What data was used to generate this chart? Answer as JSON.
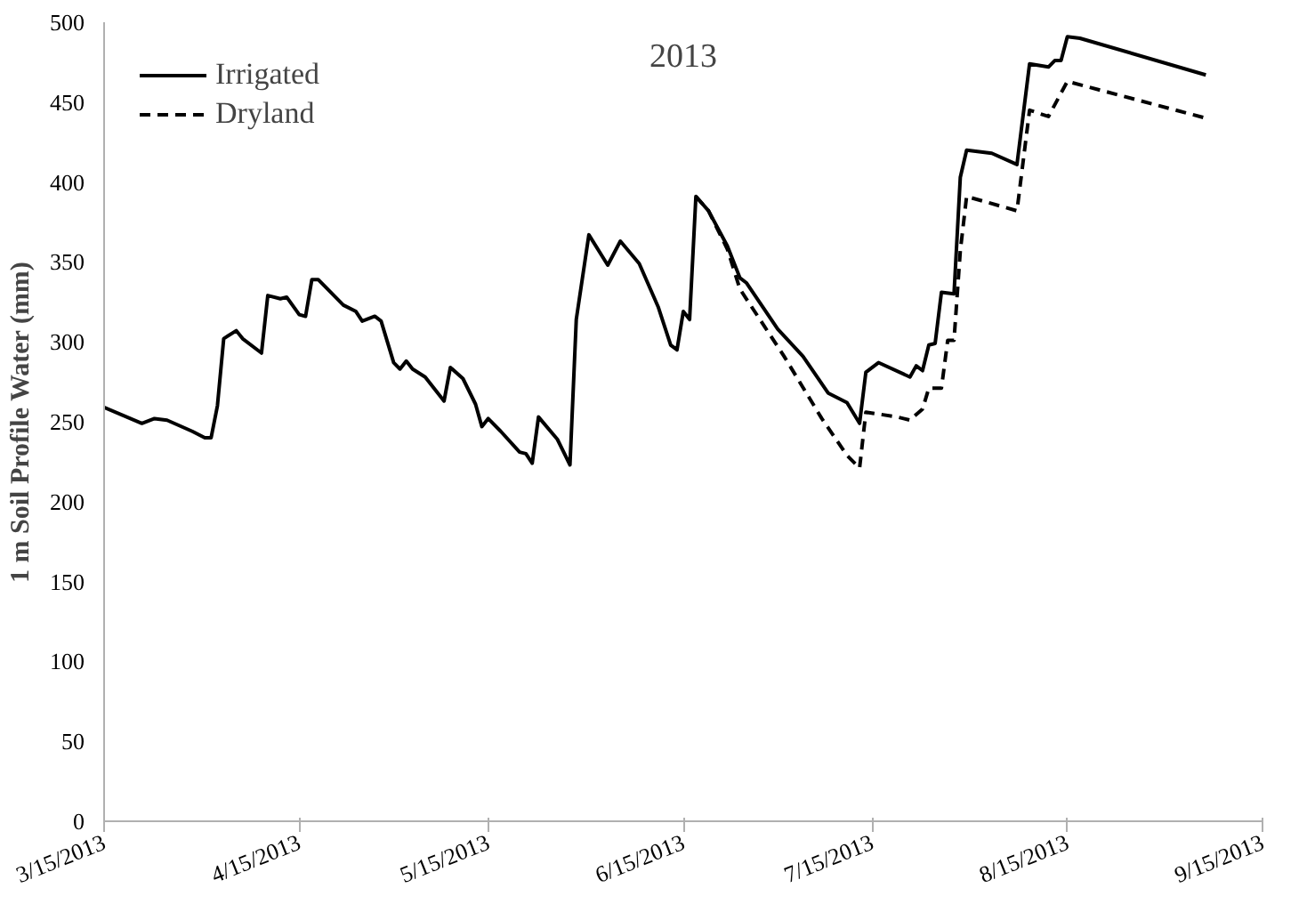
{
  "chart_data": {
    "type": "line",
    "title": "2013",
    "ylabel": "1 m Soil Profile Water (mm)",
    "xlim": [
      "2013-03-15",
      "2013-09-15"
    ],
    "xticks": [
      {
        "value": "2013-03-15",
        "label": "3/15/2013"
      },
      {
        "value": "2013-04-15",
        "label": "4/15/2013"
      },
      {
        "value": "2013-05-15",
        "label": "5/15/2013"
      },
      {
        "value": "2013-06-15",
        "label": "6/15/2013"
      },
      {
        "value": "2013-07-15",
        "label": "7/15/2013"
      },
      {
        "value": "2013-08-15",
        "label": "8/15/2013"
      },
      {
        "value": "2013-09-15",
        "label": "9/15/2013"
      }
    ],
    "ylim": [
      0,
      500
    ],
    "yticks": [
      0,
      50,
      100,
      150,
      200,
      250,
      300,
      350,
      400,
      450,
      500
    ],
    "grid": false,
    "legend": "top left",
    "marker": "none",
    "series": [
      {
        "name": "Irrigated",
        "color": "#000000",
        "line_style": "solid",
        "x": [
          "2013-03-15",
          "2013-03-21",
          "2013-03-23",
          "2013-03-25",
          "2013-03-29",
          "2013-03-31",
          "2013-04-01",
          "2013-04-02",
          "2013-04-03",
          "2013-04-05",
          "2013-04-06",
          "2013-04-09",
          "2013-04-10",
          "2013-04-12",
          "2013-04-13",
          "2013-04-15",
          "2013-04-16",
          "2013-04-17",
          "2013-04-18",
          "2013-04-22",
          "2013-04-24",
          "2013-04-25",
          "2013-04-27",
          "2013-04-28",
          "2013-04-30",
          "2013-05-01",
          "2013-05-02",
          "2013-05-03",
          "2013-05-05",
          "2013-05-08",
          "2013-05-09",
          "2013-05-11",
          "2013-05-13",
          "2013-05-14",
          "2013-05-15",
          "2013-05-17",
          "2013-05-20",
          "2013-05-21",
          "2013-05-22",
          "2013-05-23",
          "2013-05-26",
          "2013-05-28",
          "2013-05-29",
          "2013-05-31",
          "2013-06-03",
          "2013-06-05",
          "2013-06-08",
          "2013-06-11",
          "2013-06-13",
          "2013-06-14",
          "2013-06-15",
          "2013-06-16",
          "2013-06-17",
          "2013-06-19",
          "2013-06-22",
          "2013-06-24",
          "2013-06-25",
          "2013-06-30",
          "2013-07-04",
          "2013-07-08",
          "2013-07-11",
          "2013-07-13",
          "2013-07-14",
          "2013-07-16",
          "2013-07-21",
          "2013-07-22",
          "2013-07-23",
          "2013-07-24",
          "2013-07-25",
          "2013-07-26",
          "2013-07-28",
          "2013-07-29",
          "2013-07-30",
          "2013-08-03",
          "2013-08-07",
          "2013-08-09",
          "2013-08-12",
          "2013-08-13",
          "2013-08-14",
          "2013-08-15",
          "2013-08-17",
          "2013-09-06"
        ],
        "values": [
          259,
          249,
          252,
          251,
          244,
          240,
          240,
          260,
          302,
          307,
          302,
          293,
          329,
          327,
          328,
          317,
          316,
          339,
          339,
          323,
          319,
          313,
          316,
          313,
          287,
          283,
          288,
          283,
          278,
          263,
          284,
          277,
          261,
          247,
          252,
          244,
          231,
          230,
          224,
          253,
          239,
          223,
          314,
          367,
          348,
          363,
          349,
          322,
          298,
          295,
          319,
          314,
          391,
          382,
          360,
          340,
          337,
          308,
          291,
          268,
          262,
          249,
          281,
          287,
          278,
          285,
          282,
          298,
          299,
          331,
          330,
          403,
          420,
          418,
          411,
          474,
          472,
          476,
          476,
          491,
          490,
          467
        ]
      },
      {
        "name": "Dryland",
        "color": "#000000",
        "line_style": "dashed",
        "x": [
          "2013-06-17",
          "2013-06-19",
          "2013-06-22",
          "2013-06-24",
          "2013-07-01",
          "2013-07-07",
          "2013-07-11",
          "2013-07-13",
          "2013-07-14",
          "2013-07-19",
          "2013-07-21",
          "2013-07-23",
          "2013-07-24",
          "2013-07-26",
          "2013-07-27",
          "2013-07-28",
          "2013-07-29",
          "2013-07-30",
          "2013-08-07",
          "2013-08-09",
          "2013-08-12",
          "2013-08-15",
          "2013-09-06"
        ],
        "values": [
          391,
          382,
          358,
          333,
          291,
          252,
          229,
          221,
          256,
          253,
          251,
          258,
          271,
          271,
          301,
          301,
          357,
          391,
          382,
          445,
          441,
          463,
          440
        ]
      }
    ]
  }
}
